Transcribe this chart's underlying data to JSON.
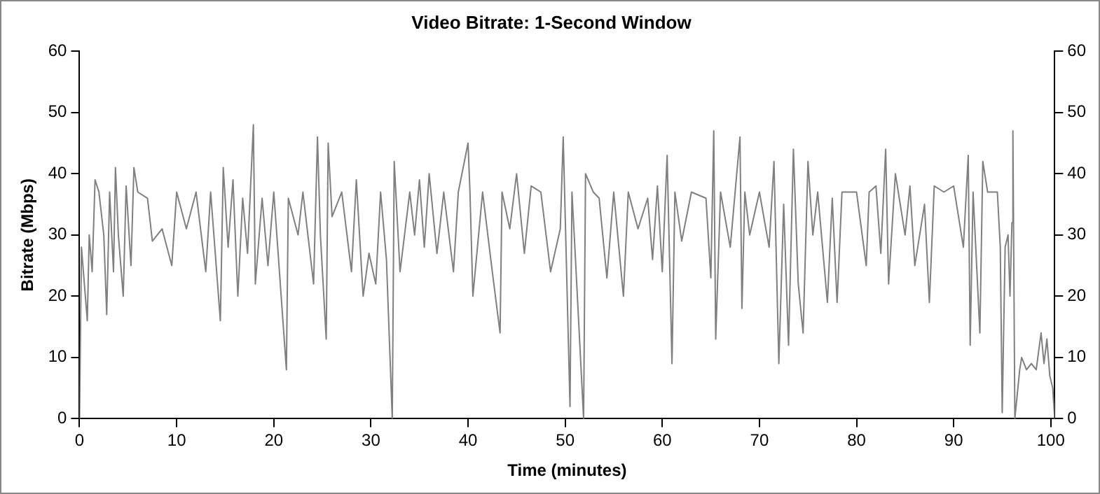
{
  "chart_data": {
    "type": "line",
    "title": "Video Bitrate: 1-Second Window",
    "xlabel": "Time (minutes)",
    "ylabel": "Bitrate (Mbps)",
    "xlim": [
      0,
      100.4
    ],
    "xticks": [
      0,
      10,
      20,
      30,
      40,
      50,
      60,
      70,
      80,
      90,
      100
    ],
    "ylim": [
      0,
      60
    ],
    "yticks": [
      0,
      10,
      20,
      30,
      40,
      50,
      60
    ],
    "y2lim": [
      0,
      60
    ],
    "y2ticks": [
      0,
      10,
      20,
      30,
      40,
      50,
      60
    ],
    "grid": false,
    "legend": false,
    "marker": "none",
    "line_style": "solid",
    "series": [
      {
        "color": "#808080",
        "x": [
          0,
          0.2,
          0.5,
          0.8,
          1.0,
          1.3,
          1.6,
          2.0,
          2.5,
          2.8,
          3.1,
          3.5,
          3.7,
          4.0,
          4.5,
          4.8,
          5.3,
          5.6,
          6.0,
          7.0,
          7.5,
          8.5,
          9.5,
          10,
          11,
          12,
          13,
          13.5,
          14.5,
          14.8,
          15.3,
          15.8,
          16.3,
          16.8,
          17.3,
          17.9,
          18.1,
          18.8,
          19.4,
          20,
          21.3,
          21.5,
          22.5,
          23,
          24.1,
          24.5,
          24.8,
          25.4,
          25.6,
          26.0,
          27.0,
          28.0,
          28.5,
          29.2,
          29.8,
          30.5,
          31,
          31.6,
          32.2,
          32.4,
          33.0,
          34,
          34.5,
          35,
          35.5,
          36,
          36.8,
          37.5,
          38.5,
          39,
          40,
          40.2,
          40.5,
          41.5,
          42.5,
          43.3,
          43.5,
          44.3,
          45,
          45.8,
          46.5,
          47.5,
          48.5,
          49.5,
          49.8,
          50.5,
          50.7,
          51.0,
          51.9,
          52.1,
          52.9,
          53.5,
          54.3,
          55,
          56,
          56.5,
          57.5,
          58.5,
          59,
          59.5,
          60,
          60.5,
          61,
          61.3,
          62,
          63,
          64.5,
          65,
          65.3,
          65.5,
          66,
          67,
          68,
          68.2,
          68.5,
          69,
          70,
          71,
          71.5,
          72,
          72.5,
          73,
          73.5,
          74,
          74.5,
          75,
          75.5,
          76,
          77,
          77.5,
          78,
          78.5,
          80,
          81,
          81.3,
          82,
          82.5,
          83,
          83.3,
          84,
          85,
          85.5,
          86,
          87,
          87.5,
          88,
          89,
          90,
          91,
          91.5,
          91.7,
          92,
          92.7,
          93,
          93.5,
          94.5,
          94.8,
          95,
          95.3,
          95.6,
          95.8,
          96,
          96.1,
          96.3,
          96.8,
          97,
          97.5,
          98,
          98.5,
          99,
          99.3,
          99.6,
          99.9,
          100.2,
          100.4
        ],
        "values": [
          0,
          28,
          22,
          16,
          30,
          24,
          39,
          37,
          30,
          17,
          37,
          24,
          41,
          30,
          20,
          38,
          25,
          41,
          37,
          36,
          29,
          31,
          25,
          37,
          31,
          37,
          24,
          37,
          16,
          41,
          28,
          39,
          20,
          36,
          27,
          48,
          22,
          36,
          25,
          37,
          8,
          36,
          30,
          37,
          22,
          46,
          30,
          13,
          45,
          33,
          37,
          24,
          39,
          20,
          27,
          22,
          37,
          26,
          0,
          42,
          24,
          37,
          30,
          39,
          28,
          40,
          27,
          37,
          24,
          37,
          45,
          37,
          20,
          37,
          24,
          14,
          37,
          31,
          40,
          27,
          38,
          37,
          24,
          31,
          46,
          2,
          37,
          28,
          0,
          40,
          37,
          36,
          23,
          37,
          20,
          37,
          31,
          36,
          26,
          38,
          24,
          43,
          9,
          37,
          29,
          37,
          36,
          23,
          47,
          13,
          37,
          28,
          46,
          18,
          37,
          30,
          37,
          28,
          42,
          9,
          35,
          12,
          44,
          22,
          14,
          42,
          30,
          37,
          19,
          36,
          19,
          37,
          37,
          25,
          37,
          38,
          27,
          44,
          22,
          40,
          30,
          38,
          25,
          35,
          19,
          38,
          37,
          38,
          28,
          43,
          12,
          37,
          14,
          42,
          37,
          37,
          28,
          1,
          28,
          30,
          20,
          32,
          47,
          0,
          8,
          10,
          8,
          9,
          8,
          14,
          9,
          13,
          7,
          5,
          0
        ]
      }
    ]
  }
}
